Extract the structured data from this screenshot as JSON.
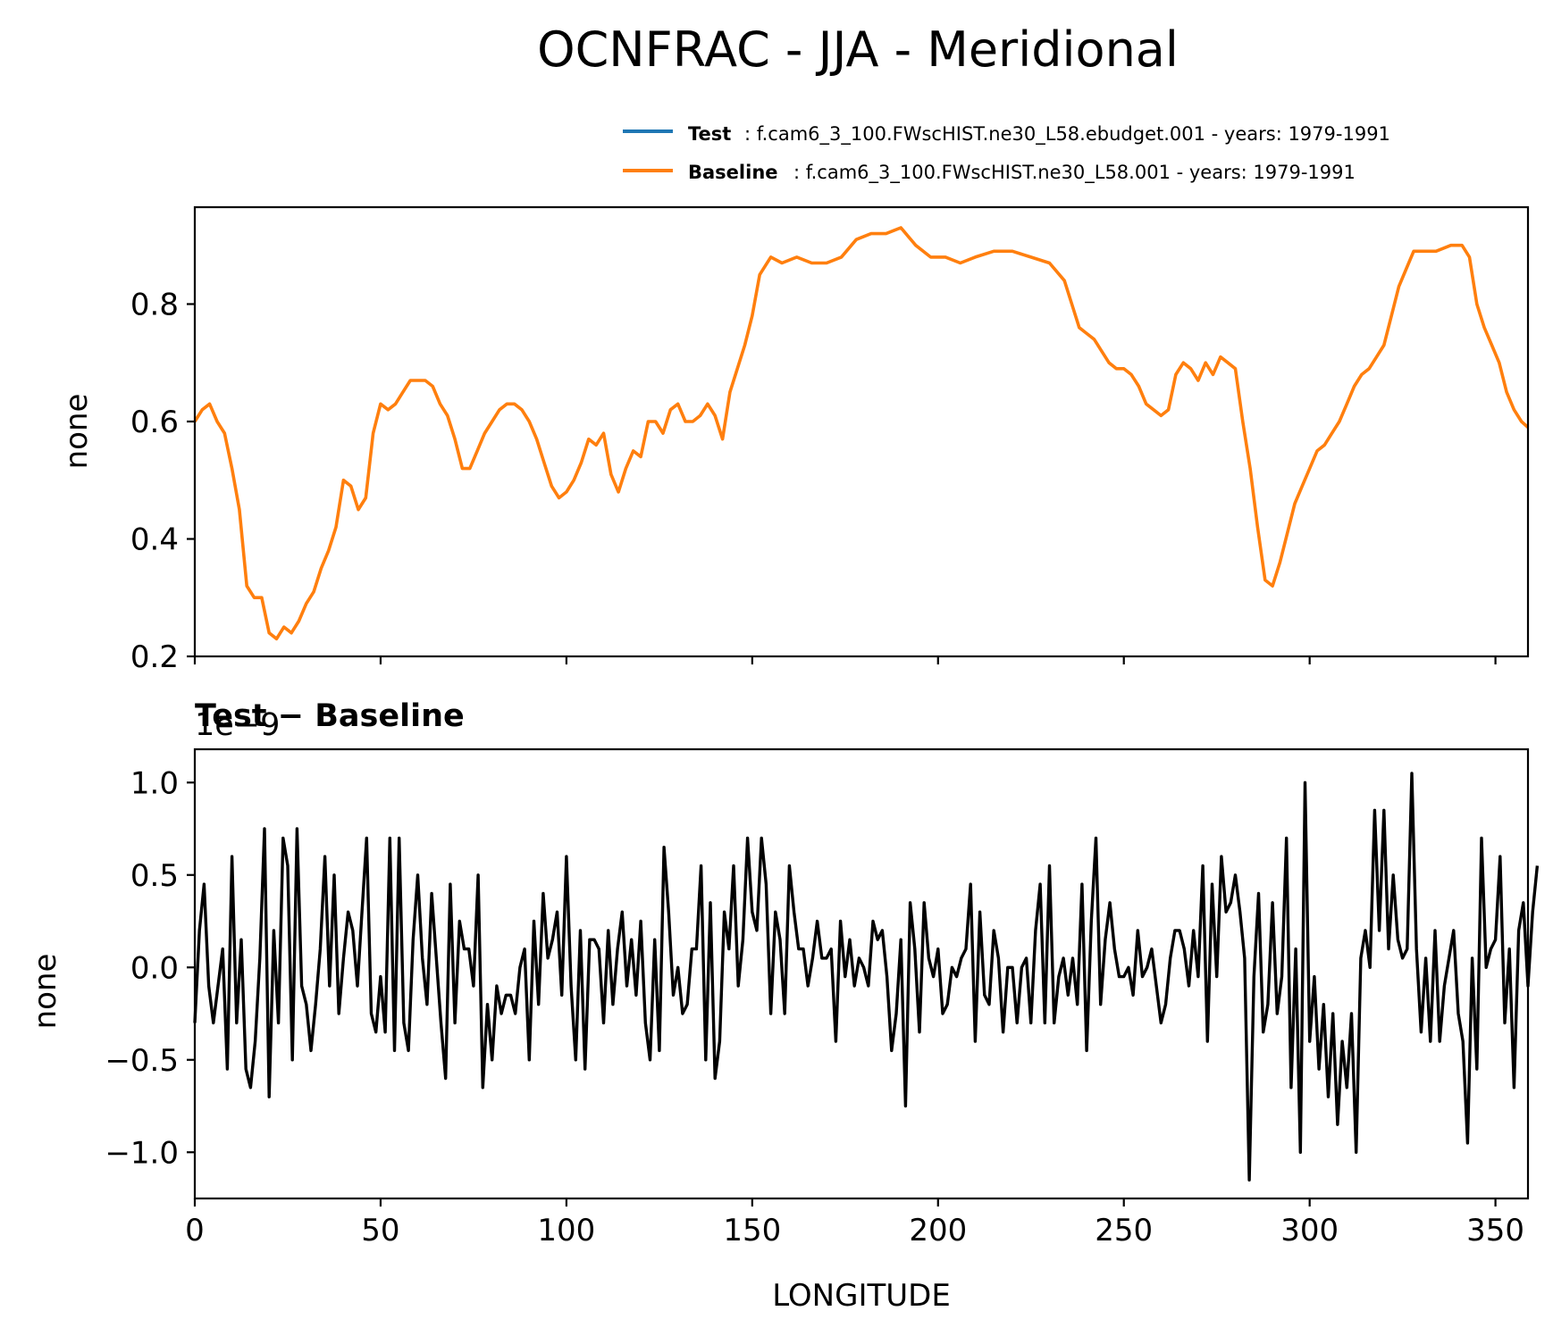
{
  "chart_data": {
    "type": "line",
    "title": "OCNFRAC - JJA - Meridional",
    "xlabel": "LONGITUDE",
    "colors": {
      "test": "#1f77b4",
      "baseline": "#ff7f0e",
      "diff": "#000000"
    },
    "legend": [
      {
        "key": "Test",
        "text": ": f.cam6_3_100.FWscHIST.ne30_L58.ebudget.001 - years: 1979-1991"
      },
      {
        "key": "Baseline",
        "text": ": f.cam6_3_100.FWscHIST.ne30_L58.001 - years: 1979-1991"
      }
    ],
    "top": {
      "ylabel": "none",
      "xlim": [
        0,
        358.75
      ],
      "ylim": [
        0.2,
        0.965
      ],
      "yticks": [
        "0.2",
        "0.4",
        "0.6",
        "0.8"
      ],
      "series": [
        {
          "name": "Baseline",
          "x": [
            0,
            2,
            4,
            6,
            8,
            10,
            12,
            14,
            16,
            18,
            20,
            22,
            24,
            26,
            28,
            30,
            32,
            34,
            36,
            38,
            40,
            42,
            44,
            46,
            48,
            50,
            52,
            54,
            56,
            58,
            60,
            62,
            64,
            66,
            68,
            70,
            72,
            74,
            76,
            78,
            80,
            82,
            84,
            86,
            88,
            90,
            92,
            94,
            96,
            98,
            100,
            102,
            104,
            106,
            108,
            110,
            112,
            114,
            116,
            118,
            120,
            122,
            124,
            126,
            128,
            130,
            132,
            134,
            136,
            138,
            140,
            142,
            144,
            146,
            148,
            150,
            152,
            155,
            158,
            162,
            166,
            170,
            174,
            178,
            182,
            186,
            190,
            194,
            198,
            202,
            206,
            210,
            215,
            220,
            225,
            230,
            234,
            236,
            238,
            240,
            242,
            244,
            246,
            248,
            250,
            252,
            254,
            256,
            258,
            260,
            262,
            264,
            266,
            268,
            270,
            272,
            274,
            276,
            278,
            280,
            282,
            284,
            286,
            288,
            290,
            292,
            294,
            296,
            298,
            300,
            302,
            304,
            306,
            308,
            310,
            312,
            314,
            316,
            318,
            320,
            322,
            324,
            326,
            328,
            330,
            334,
            338,
            341,
            343,
            345,
            347,
            349,
            351,
            353,
            355,
            357,
            358.75
          ],
          "values": [
            0.6,
            0.62,
            0.63,
            0.6,
            0.58,
            0.52,
            0.45,
            0.32,
            0.3,
            0.3,
            0.24,
            0.23,
            0.25,
            0.24,
            0.26,
            0.29,
            0.31,
            0.35,
            0.38,
            0.42,
            0.5,
            0.49,
            0.45,
            0.47,
            0.58,
            0.63,
            0.62,
            0.63,
            0.65,
            0.67,
            0.67,
            0.67,
            0.66,
            0.63,
            0.61,
            0.57,
            0.52,
            0.52,
            0.55,
            0.58,
            0.6,
            0.62,
            0.63,
            0.63,
            0.62,
            0.6,
            0.57,
            0.53,
            0.49,
            0.47,
            0.48,
            0.5,
            0.53,
            0.57,
            0.56,
            0.58,
            0.51,
            0.48,
            0.52,
            0.55,
            0.54,
            0.6,
            0.6,
            0.58,
            0.62,
            0.63,
            0.6,
            0.6,
            0.61,
            0.63,
            0.61,
            0.57,
            0.65,
            0.69,
            0.73,
            0.78,
            0.85,
            0.88,
            0.87,
            0.88,
            0.87,
            0.87,
            0.88,
            0.91,
            0.92,
            0.92,
            0.93,
            0.9,
            0.88,
            0.88,
            0.87,
            0.88,
            0.89,
            0.89,
            0.88,
            0.87,
            0.84,
            0.8,
            0.76,
            0.75,
            0.74,
            0.72,
            0.7,
            0.69,
            0.69,
            0.68,
            0.66,
            0.63,
            0.62,
            0.61,
            0.62,
            0.68,
            0.7,
            0.69,
            0.67,
            0.7,
            0.68,
            0.71,
            0.7,
            0.69,
            0.6,
            0.52,
            0.42,
            0.33,
            0.32,
            0.36,
            0.41,
            0.46,
            0.49,
            0.52,
            0.55,
            0.56,
            0.58,
            0.6,
            0.63,
            0.66,
            0.68,
            0.69,
            0.71,
            0.73,
            0.78,
            0.83,
            0.86,
            0.89,
            0.89,
            0.89,
            0.9,
            0.9,
            0.88,
            0.8,
            0.76,
            0.73,
            0.7,
            0.65,
            0.62,
            0.6,
            0.59
          ]
        }
      ]
    },
    "bottom": {
      "subtitle": "Test − Baseline",
      "offset_text": "1e−9",
      "ylabel": "none",
      "xlim": [
        0,
        358.75
      ],
      "ylim": [
        -1.25,
        1.18
      ],
      "yticks": [
        "−1.0",
        "−0.5",
        "0.0",
        "0.5",
        "1.0"
      ],
      "xticks": [
        "0",
        "50",
        "100",
        "150",
        "200",
        "250",
        "300",
        "350"
      ],
      "series": [
        {
          "name": "Test − Baseline",
          "x_start": 0,
          "x_step": 1.25,
          "values": [
            -0.3,
            0.2,
            0.45,
            -0.1,
            -0.3,
            -0.1,
            0.1,
            -0.55,
            0.6,
            -0.3,
            0.15,
            -0.55,
            -0.65,
            -0.4,
            0.05,
            0.75,
            -0.7,
            0.2,
            -0.3,
            0.7,
            0.55,
            -0.5,
            0.75,
            -0.1,
            -0.2,
            -0.45,
            -0.2,
            0.1,
            0.6,
            -0.1,
            0.5,
            -0.25,
            0.05,
            0.3,
            0.2,
            -0.1,
            0.3,
            0.7,
            -0.25,
            -0.35,
            -0.05,
            -0.35,
            0.7,
            -0.45,
            0.7,
            -0.3,
            -0.45,
            0.15,
            0.5,
            0.05,
            -0.2,
            0.4,
            0.05,
            -0.3,
            -0.6,
            0.45,
            -0.3,
            0.25,
            0.1,
            0.1,
            -0.1,
            0.5,
            -0.65,
            -0.2,
            -0.5,
            -0.1,
            -0.25,
            -0.15,
            -0.15,
            -0.25,
            0.0,
            0.1,
            -0.5,
            0.25,
            -0.2,
            0.4,
            0.05,
            0.15,
            0.3,
            -0.15,
            0.6,
            -0.1,
            -0.5,
            0.2,
            -0.55,
            0.15,
            0.15,
            0.1,
            -0.3,
            0.2,
            -0.2,
            0.1,
            0.3,
            -0.1,
            0.15,
            -0.15,
            0.25,
            -0.3,
            -0.5,
            0.15,
            -0.45,
            0.65,
            0.3,
            -0.15,
            0.0,
            -0.25,
            -0.2,
            0.1,
            0.1,
            0.55,
            -0.5,
            0.35,
            -0.6,
            -0.4,
            0.3,
            0.1,
            0.55,
            -0.1,
            0.15,
            0.7,
            0.3,
            0.2,
            0.7,
            0.45,
            -0.25,
            0.3,
            0.15,
            -0.25,
            0.55,
            0.3,
            0.1,
            0.1,
            -0.1,
            0.05,
            0.25,
            0.05,
            0.05,
            0.1,
            -0.4,
            0.25,
            -0.05,
            0.15,
            -0.1,
            0.05,
            0.0,
            -0.1,
            0.25,
            0.15,
            0.2,
            -0.05,
            -0.45,
            -0.25,
            0.15,
            -0.75,
            0.35,
            0.1,
            -0.35,
            0.35,
            0.05,
            -0.05,
            0.1,
            -0.25,
            -0.2,
            0.0,
            -0.05,
            0.05,
            0.1,
            0.45,
            -0.4,
            0.3,
            -0.15,
            -0.2,
            0.2,
            0.05,
            -0.35,
            0.0,
            0.0,
            -0.3,
            0.0,
            0.05,
            -0.3,
            0.2,
            0.45,
            -0.3,
            0.55,
            -0.3,
            -0.05,
            0.05,
            -0.15,
            0.05,
            -0.2,
            0.45,
            -0.45,
            0.25,
            0.7,
            -0.2,
            0.15,
            0.35,
            0.1,
            -0.05,
            -0.05,
            0.0,
            -0.15,
            0.2,
            -0.05,
            0.0,
            0.1,
            -0.1,
            -0.3,
            -0.2,
            0.05,
            0.2,
            0.2,
            0.1,
            -0.1,
            0.2,
            -0.05,
            0.55,
            -0.4,
            0.45,
            -0.05,
            0.6,
            0.3,
            0.35,
            0.5,
            0.3,
            0.05,
            -1.15,
            -0.05,
            0.4,
            -0.35,
            -0.2,
            0.35,
            -0.25,
            -0.05,
            0.7,
            -0.65,
            0.1,
            -1.0,
            1.0,
            -0.4,
            -0.05,
            -0.55,
            -0.2,
            -0.7,
            -0.25,
            -0.85,
            -0.4,
            -0.65,
            -0.25,
            -1.0,
            0.05,
            0.2,
            0.0,
            0.85,
            0.2,
            0.85,
            0.1,
            0.5,
            0.15,
            0.05,
            0.1,
            1.05,
            0.1,
            -0.35,
            0.05,
            -0.4,
            0.2,
            -0.4,
            -0.1,
            0.05,
            0.2,
            -0.25,
            -0.4,
            -0.95,
            0.05,
            -0.55,
            0.7,
            0.0,
            0.1,
            0.15,
            0.6,
            -0.3,
            0.1,
            -0.65,
            0.2,
            0.35,
            -0.1,
            0.3,
            0.55
          ]
        }
      ]
    }
  }
}
